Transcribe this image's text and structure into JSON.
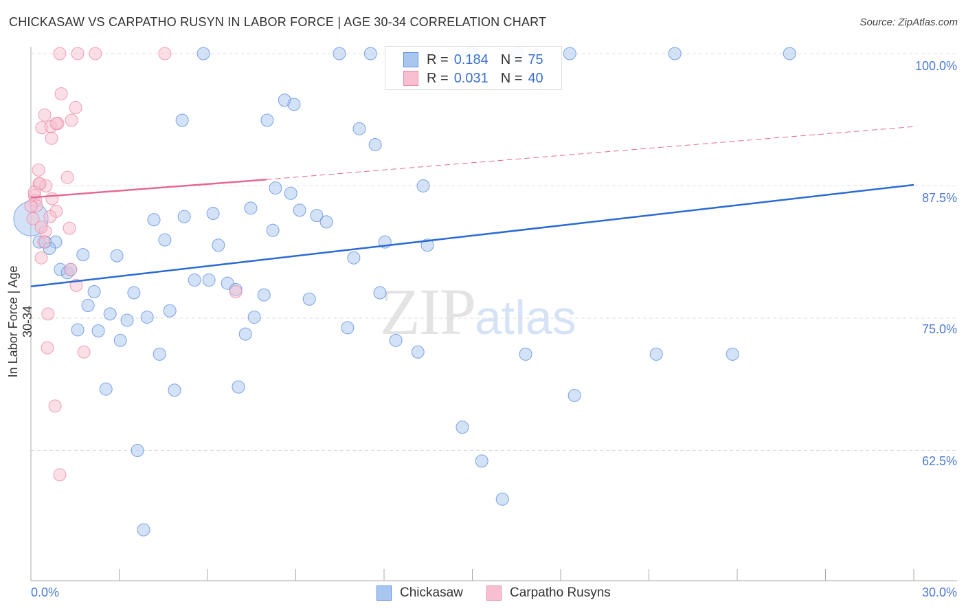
{
  "chart_data": {
    "type": "scatter",
    "title": "CHICKASAW VS CARPATHO RUSYN IN LABOR FORCE | AGE 30-34 CORRELATION CHART",
    "source": "Source: ZipAtlas.com",
    "xlabel": "",
    "ylabel": "In Labor Force | Age 30-34",
    "xlim": [
      0,
      30
    ],
    "ylim": [
      50.2,
      100.6
    ],
    "x_tick_labels": [
      "0.0%",
      "30.0%"
    ],
    "y_ticks": [
      100,
      87.5,
      75,
      62.5
    ],
    "y_tick_labels": [
      "100.0%",
      "87.5%",
      "75.0%",
      "62.5%"
    ],
    "grid": true,
    "legend_placement": "top-center",
    "watermark": "ZIPatlas",
    "series": [
      {
        "name": "Chickasaw",
        "color": "#5b8fe0",
        "fill": "#a9c6f0",
        "R": "0.184",
        "N": "75",
        "trend": {
          "x": [
            0,
            30
          ],
          "y": [
            78.0,
            87.6
          ],
          "style": "solid",
          "color": "#2a6ad3"
        },
        "points": [
          [
            5.86,
            100
          ],
          [
            10.48,
            100
          ],
          [
            11.54,
            100
          ],
          [
            14.97,
            100
          ],
          [
            16.55,
            100
          ],
          [
            18.31,
            100
          ],
          [
            21.88,
            100
          ],
          [
            25.78,
            100
          ],
          [
            8.62,
            95.6
          ],
          [
            8.94,
            95.2
          ],
          [
            5.14,
            93.7
          ],
          [
            8.03,
            93.7
          ],
          [
            11.16,
            92.9
          ],
          [
            11.7,
            91.4
          ],
          [
            13.33,
            87.5
          ],
          [
            8.31,
            87.3
          ],
          [
            8.83,
            86.8
          ],
          [
            4.18,
            84.3
          ],
          [
            5.21,
            84.6
          ],
          [
            6.19,
            84.9
          ],
          [
            7.47,
            85.4
          ],
          [
            9.13,
            85.2
          ],
          [
            9.71,
            84.7
          ],
          [
            10.04,
            84.1
          ],
          [
            8.22,
            83.3
          ],
          [
            0,
            84.4
          ],
          [
            0.28,
            82.2
          ],
          [
            0.49,
            82.2
          ],
          [
            0.84,
            82.2
          ],
          [
            0.63,
            81.6
          ],
          [
            4.55,
            82.4
          ],
          [
            6.37,
            81.9
          ],
          [
            12.03,
            82.2
          ],
          [
            13.47,
            81.9
          ],
          [
            1.77,
            81.0
          ],
          [
            2.92,
            80.9
          ],
          [
            10.97,
            80.7
          ],
          [
            1.0,
            79.6
          ],
          [
            1.24,
            79.3
          ],
          [
            1.35,
            79.6
          ],
          [
            5.56,
            78.6
          ],
          [
            6.05,
            78.6
          ],
          [
            6.68,
            78.3
          ],
          [
            6.96,
            77.7
          ],
          [
            2.15,
            77.5
          ],
          [
            3.5,
            77.4
          ],
          [
            7.92,
            77.2
          ],
          [
            9.46,
            76.8
          ],
          [
            11.86,
            77.4
          ],
          [
            1.94,
            76.2
          ],
          [
            2.69,
            75.4
          ],
          [
            3.27,
            74.8
          ],
          [
            3.95,
            75.1
          ],
          [
            4.72,
            75.7
          ],
          [
            7.59,
            75.1
          ],
          [
            1.59,
            73.9
          ],
          [
            2.29,
            73.8
          ],
          [
            3.04,
            72.9
          ],
          [
            7.29,
            73.5
          ],
          [
            10.76,
            74.1
          ],
          [
            12.4,
            72.9
          ],
          [
            4.37,
            71.6
          ],
          [
            13.15,
            71.8
          ],
          [
            16.81,
            71.6
          ],
          [
            21.25,
            71.6
          ],
          [
            23.84,
            71.6
          ],
          [
            2.55,
            68.3
          ],
          [
            4.88,
            68.2
          ],
          [
            7.05,
            68.5
          ],
          [
            18.47,
            67.7
          ],
          [
            14.66,
            64.7
          ],
          [
            3.62,
            62.5
          ],
          [
            15.32,
            61.5
          ],
          [
            16.02,
            57.9
          ],
          [
            3.83,
            55.0
          ]
        ]
      },
      {
        "name": "Carpatho Rusyns",
        "color": "#e88aa6",
        "fill": "#f7bfd0",
        "R": "0.031",
        "N": "40",
        "trend": {
          "x": [
            0,
            8.0,
            30
          ],
          "y": [
            86.4,
            88.1,
            93.1
          ],
          "style": "solid-then-dashed",
          "color": "#e4698f"
        },
        "points": [
          [
            0.98,
            100
          ],
          [
            1.59,
            100
          ],
          [
            2.19,
            100
          ],
          [
            4.55,
            100
          ],
          [
            1.03,
            96.2
          ],
          [
            1.52,
            94.9
          ],
          [
            0.47,
            94.2
          ],
          [
            0.37,
            93.0
          ],
          [
            0.68,
            93.1
          ],
          [
            0.91,
            93.4
          ],
          [
            0.86,
            93.4
          ],
          [
            1.38,
            93.7
          ],
          [
            0.7,
            92.0
          ],
          [
            0.26,
            89.0
          ],
          [
            1.24,
            88.3
          ],
          [
            0.28,
            87.7
          ],
          [
            0.51,
            87.5
          ],
          [
            0.3,
            87.7
          ],
          [
            0.72,
            86.3
          ],
          [
            0.12,
            86.6
          ],
          [
            0.16,
            86.1
          ],
          [
            0.19,
            85.6
          ],
          [
            0.86,
            85.1
          ],
          [
            0.65,
            84.6
          ],
          [
            1.31,
            83.5
          ],
          [
            0.49,
            83.2
          ],
          [
            0.44,
            82.2
          ],
          [
            0.35,
            80.7
          ],
          [
            1.35,
            79.6
          ],
          [
            1.54,
            78.1
          ],
          [
            6.96,
            77.5
          ],
          [
            0.58,
            75.4
          ],
          [
            0.56,
            72.2
          ],
          [
            1.8,
            71.8
          ],
          [
            0.82,
            66.7
          ],
          [
            0.98,
            60.2
          ],
          [
            0.07,
            84.4
          ],
          [
            0,
            85.6
          ],
          [
            0.12,
            86.9
          ],
          [
            0.35,
            83.6
          ]
        ]
      }
    ]
  },
  "legend": {
    "r_label": "R =",
    "n_label": "N ="
  }
}
